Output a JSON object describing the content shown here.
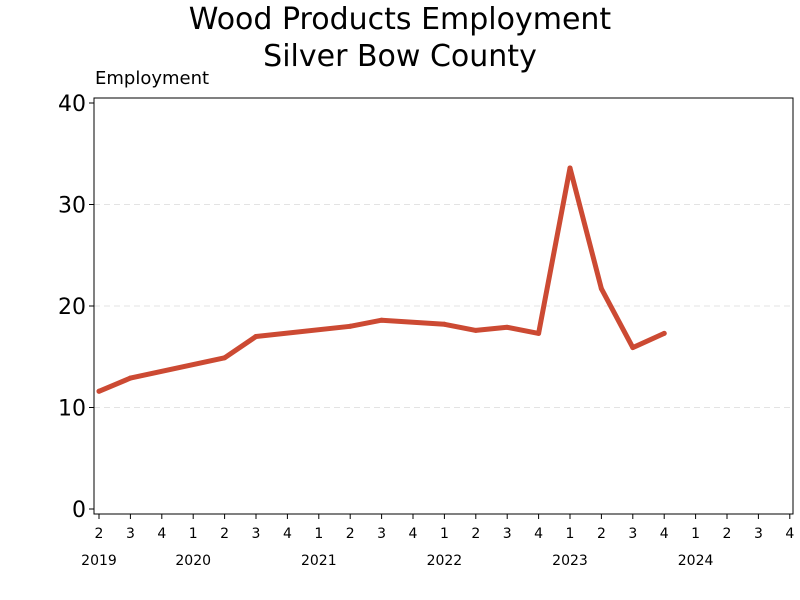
{
  "chart_data": {
    "type": "line",
    "title": "Wood Products Employment",
    "subtitle": "Silver Bow County",
    "ylabel": "Employment",
    "xlabel": "",
    "ylim": [
      0,
      40
    ],
    "yticks": [
      0,
      10,
      20,
      30,
      40
    ],
    "grid": "horizontal dashed",
    "color": "#cc4a33",
    "x_ticks": [
      {
        "q": "2",
        "year": "2019"
      },
      {
        "q": "3",
        "year": ""
      },
      {
        "q": "4",
        "year": ""
      },
      {
        "q": "1",
        "year": "2020"
      },
      {
        "q": "2",
        "year": ""
      },
      {
        "q": "3",
        "year": ""
      },
      {
        "q": "4",
        "year": ""
      },
      {
        "q": "1",
        "year": "2021"
      },
      {
        "q": "2",
        "year": ""
      },
      {
        "q": "3",
        "year": ""
      },
      {
        "q": "4",
        "year": ""
      },
      {
        "q": "1",
        "year": "2022"
      },
      {
        "q": "2",
        "year": ""
      },
      {
        "q": "3",
        "year": ""
      },
      {
        "q": "4",
        "year": ""
      },
      {
        "q": "1",
        "year": "2023"
      },
      {
        "q": "2",
        "year": ""
      },
      {
        "q": "3",
        "year": ""
      },
      {
        "q": "4",
        "year": ""
      },
      {
        "q": "1",
        "year": "2024"
      },
      {
        "q": "2",
        "year": ""
      },
      {
        "q": "3",
        "year": ""
      },
      {
        "q": "4",
        "year": ""
      }
    ],
    "series": [
      {
        "values": [
          11.6,
          12.9,
          null,
          null,
          14.9,
          17.0,
          null,
          null,
          18.0,
          18.6,
          null,
          18.2,
          17.6,
          17.9,
          17.3,
          33.6,
          21.7,
          15.9,
          17.3
        ]
      }
    ]
  }
}
